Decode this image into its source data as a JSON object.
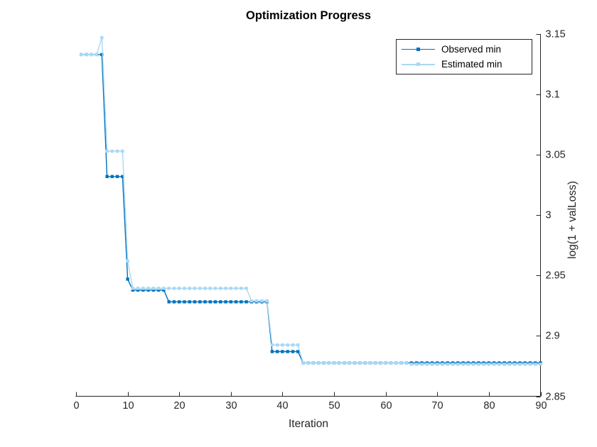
{
  "window": {
    "background": "#ffffff"
  },
  "chart_data": {
    "type": "line",
    "title": "Optimization Progress",
    "xlabel": "Iteration",
    "ylabel": "log(1 + valLoss)",
    "xlim": [
      0,
      90
    ],
    "ylim": [
      2.85,
      3.15
    ],
    "xticks": [
      0,
      10,
      20,
      30,
      40,
      50,
      60,
      70,
      80,
      90
    ],
    "xtick_labels": [
      "0",
      "10",
      "20",
      "30",
      "40",
      "50",
      "60",
      "70",
      "80",
      "90"
    ],
    "yticks": [
      2.85,
      2.9,
      2.95,
      3,
      3.05,
      3.1,
      3.15
    ],
    "ytick_labels": [
      "2.85",
      "2.9",
      "2.95",
      "3",
      "3.05",
      "3.1",
      "3.15"
    ],
    "grid": false,
    "axis_color": "#262626",
    "tick_direction": "in",
    "yaxis_side": "right",
    "marker": "square",
    "legend": {
      "position": "top-right-inside",
      "entries": [
        "Observed min",
        "Estimated min"
      ]
    },
    "series": [
      {
        "name": "Observed min",
        "color": "#0072BD",
        "segments": [
          {
            "from": 1,
            "to": 5,
            "value": 3.133
          },
          {
            "from": 6,
            "to": 9,
            "value": 3.032
          },
          {
            "from": 10,
            "to": 10,
            "value": 2.947
          },
          {
            "from": 11,
            "to": 17,
            "value": 2.938
          },
          {
            "from": 18,
            "to": 37,
            "value": 2.9282
          },
          {
            "from": 38,
            "to": 43,
            "value": 2.887
          },
          {
            "from": 44,
            "to": 90,
            "value": 2.8776
          }
        ]
      },
      {
        "name": "Estimated min",
        "color": "#A9D8F5",
        "segments": [
          {
            "from": 1,
            "to": 4,
            "value": 3.133
          },
          {
            "from": 5,
            "to": 5,
            "value": 3.147
          },
          {
            "from": 6,
            "to": 9,
            "value": 3.053
          },
          {
            "from": 10,
            "to": 10,
            "value": 2.962
          },
          {
            "from": 11,
            "to": 33,
            "value": 2.9394
          },
          {
            "from": 34,
            "to": 37,
            "value": 2.929
          },
          {
            "from": 38,
            "to": 43,
            "value": 2.8925
          },
          {
            "from": 44,
            "to": 64,
            "value": 2.8776
          },
          {
            "from": 65,
            "to": 90,
            "value": 2.8765
          }
        ]
      }
    ]
  }
}
